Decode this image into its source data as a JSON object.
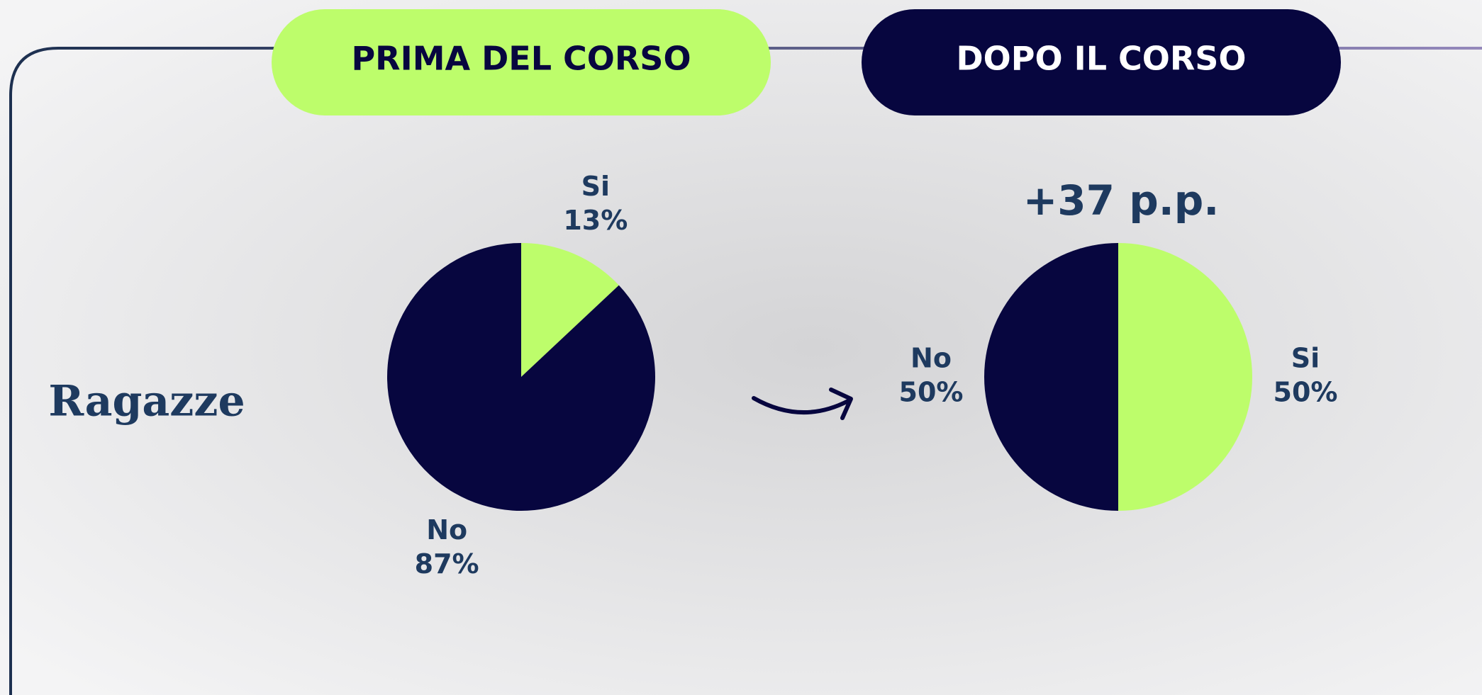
{
  "label": "Ragazze",
  "chart_data": [
    {
      "type": "pie",
      "title": "PRIMA DEL CORSO",
      "categories": [
        "Si",
        "No"
      ],
      "values": [
        13,
        87
      ],
      "value_labels": [
        "13%",
        "87%"
      ],
      "colors": [
        "#bdfd6b",
        "#07063f"
      ]
    },
    {
      "type": "pie",
      "title": "DOPO IL CORSO",
      "annotation": "+37 p.p.",
      "categories": [
        "Si",
        "No"
      ],
      "values": [
        50,
        50
      ],
      "value_labels": [
        "50%",
        "50%"
      ],
      "colors": [
        "#bdfd6b",
        "#07063f"
      ]
    }
  ]
}
